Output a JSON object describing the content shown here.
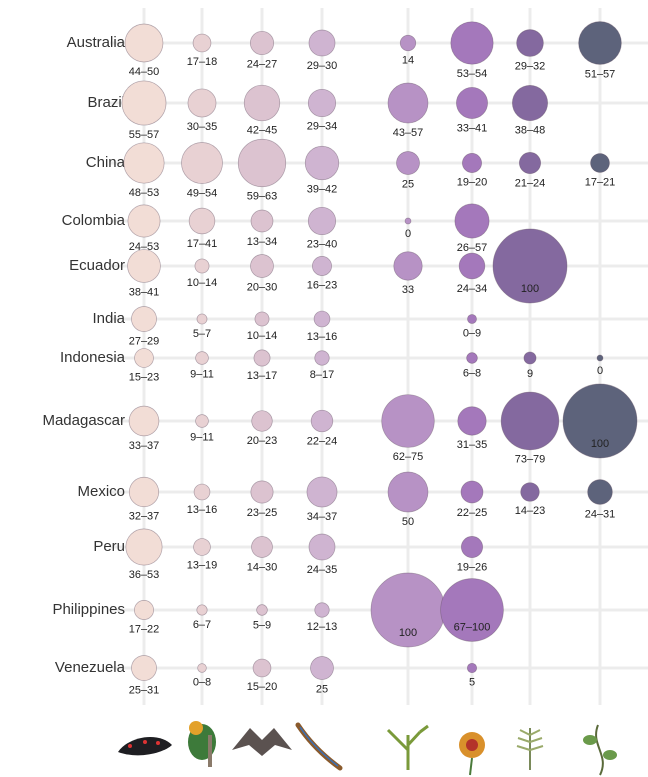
{
  "chart_data": {
    "type": "bubble-grid",
    "categories": [
      "Australia",
      "Brazil",
      "China",
      "Colombia",
      "Ecuador",
      "India",
      "Indonesia",
      "Madagascar",
      "Mexico",
      "Peru",
      "Philippines",
      "Venezuela"
    ],
    "series": [
      {
        "color": "#f2ddd6",
        "values": [
          47,
          56,
          50.5,
          38.5,
          39.5,
          28,
          19,
          35,
          34.5,
          44.5,
          19.5,
          28
        ],
        "value_labels": [
          "44–50",
          "55–57",
          "48–53",
          "24–53",
          "38–41",
          "27–29",
          "15–23",
          "33–37",
          "32–37",
          "36–53",
          "17–22",
          "25–31"
        ]
      },
      {
        "color": "#e8d1d3",
        "values": [
          17.5,
          32.5,
          51.5,
          29,
          12,
          6,
          10,
          10,
          14.5,
          16,
          6.5,
          4
        ],
        "value_labels": [
          "17–18",
          "30–35",
          "49–54",
          "17–41",
          "10–14",
          "5–7",
          "9–11",
          "9–11",
          "13–16",
          "13–19",
          "6–7",
          "0–8"
        ]
      },
      {
        "color": "#dcc3d0",
        "values": [
          25.5,
          43.5,
          61,
          23.5,
          25,
          12,
          15,
          21.5,
          24,
          22,
          7,
          17.5
        ],
        "value_labels": [
          "24–27",
          "42–45",
          "59–63",
          "13–34",
          "20–30",
          "10–14",
          "13–17",
          "20–23",
          "23–25",
          "14–30",
          "5–9",
          "15–20"
        ]
      },
      {
        "color": "#cfb4d1",
        "values": [
          29.5,
          31.5,
          40.5,
          31.5,
          19.5,
          14.5,
          12.5,
          23,
          35.5,
          29.5,
          12.5,
          25
        ],
        "value_labels": [
          "29–30",
          "29–34",
          "39–42",
          "23–40",
          "16–23",
          "13–16",
          "8–17",
          "22–24",
          "34–37",
          "24–35",
          "12–13",
          "25"
        ]
      },
      {
        "color": "#b792c5",
        "values": [
          14,
          50,
          25,
          0,
          33,
          null,
          null,
          68.5,
          50,
          null,
          100,
          null
        ],
        "value_labels": [
          "14",
          "43–57",
          "25",
          "0",
          "33",
          null,
          null,
          "62–75",
          "50",
          null,
          "100",
          null
        ]
      },
      {
        "color": "#a478bb",
        "values": [
          53.5,
          37,
          19.5,
          41.5,
          29,
          4.5,
          7,
          33,
          23.5,
          22.5,
          83.5,
          5
        ],
        "value_labels": [
          "53–54",
          "33–41",
          "19–20",
          "26–57",
          "24–34",
          "0–9",
          "6–8",
          "31–35",
          "22–25",
          "19–26",
          "67–100",
          "5"
        ]
      },
      {
        "color": "#84699f",
        "values": [
          30.5,
          43,
          22.5,
          null,
          100,
          null,
          9,
          76,
          18.5,
          null,
          null,
          null
        ],
        "value_labels": [
          "29–32",
          "38–48",
          "21–24",
          null,
          "100",
          null,
          "9",
          "73–79",
          "14–23",
          null,
          null,
          null
        ]
      },
      {
        "color": "#5d637b",
        "values": [
          54,
          null,
          19,
          null,
          null,
          null,
          0,
          100,
          27.5,
          null,
          null,
          null
        ],
        "value_labels": [
          "51–57",
          null,
          "17–21",
          null,
          null,
          null,
          "0",
          "100",
          "24–31",
          null,
          null,
          null
        ]
      }
    ]
  }
}
